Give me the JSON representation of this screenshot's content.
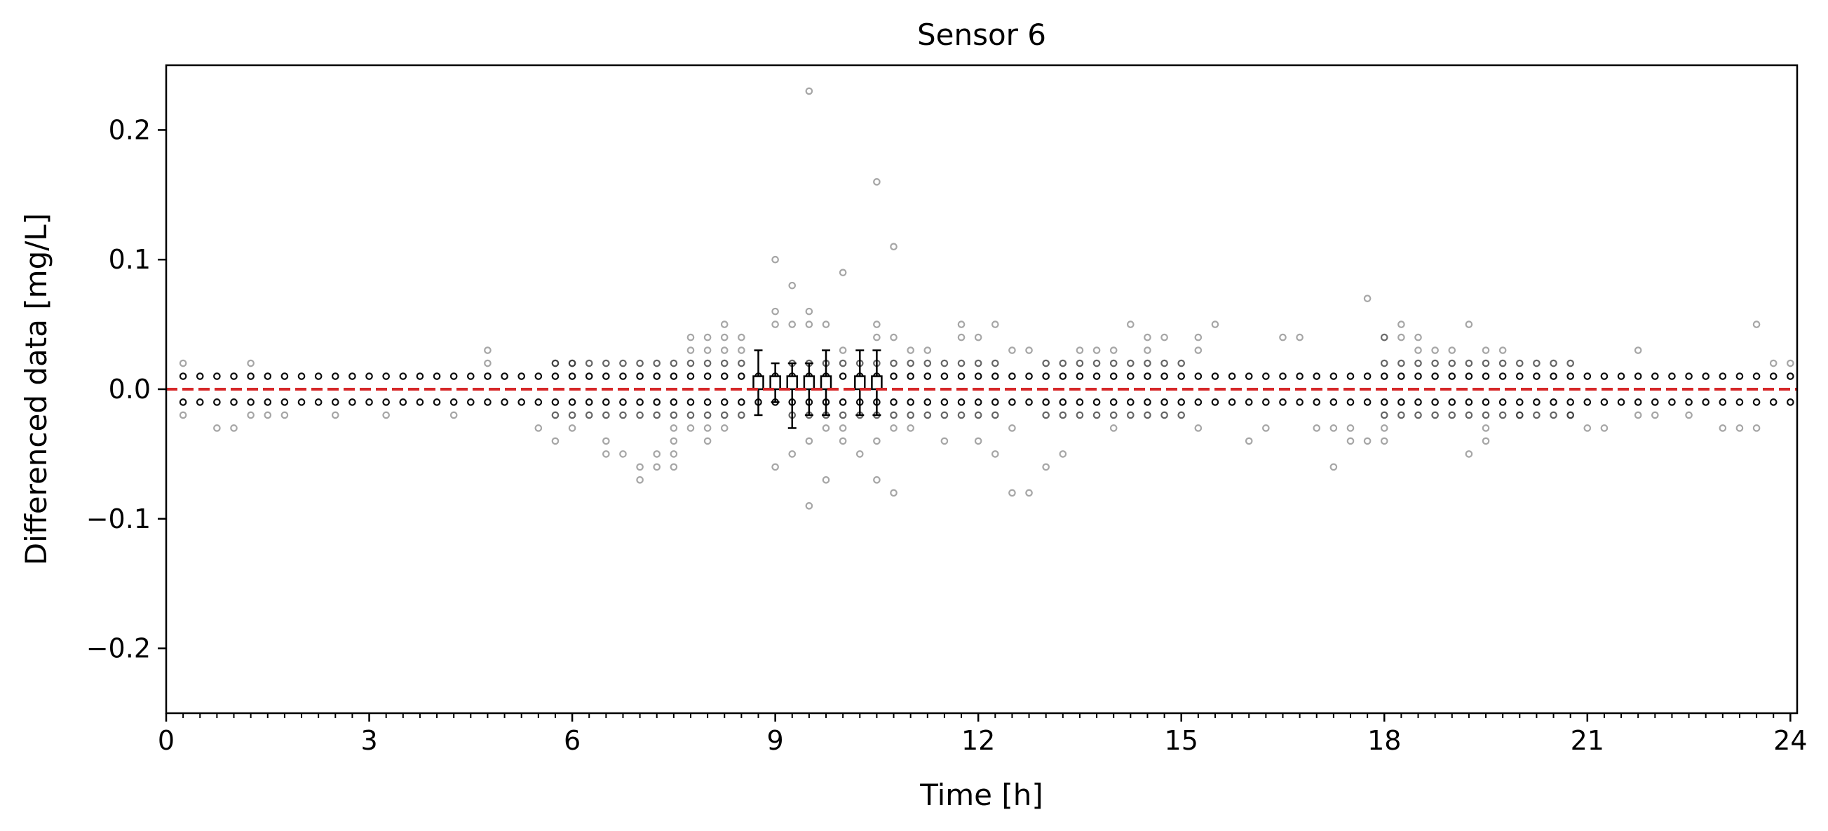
{
  "chart_data": {
    "type": "scatter",
    "title": "Sensor 6",
    "xlabel": "Time [h]",
    "ylabel": "Differenced data [mg/L]",
    "xlim": [
      0,
      24.1
    ],
    "ylim": [
      -0.25,
      0.25
    ],
    "x_ticks": [
      0,
      3,
      6,
      9,
      12,
      15,
      18,
      21,
      24
    ],
    "x_tick_labels": [
      "0",
      "3",
      "6",
      "9",
      "12",
      "15",
      "18",
      "21",
      "24"
    ],
    "x_minor_step": 0.25,
    "y_ticks": [
      -0.2,
      -0.1,
      0.0,
      0.1,
      0.2
    ],
    "y_tick_labels": [
      "−0.2",
      "−0.1",
      "0.0",
      "0.1",
      "0.2"
    ],
    "grid": false,
    "reference_line": {
      "y": 0.0,
      "style": "dashed",
      "color": "#d62728"
    },
    "point_color": "#000000",
    "sample_interval_h": 0.25,
    "num_slots": 96,
    "baseline_values": [
      -0.01,
      0.01
    ],
    "outer_values": [
      -0.02,
      0.02
    ],
    "outer_slot_ranges": [
      [
        23,
        34
      ],
      [
        37,
        49
      ],
      [
        52,
        60
      ],
      [
        72,
        83
      ]
    ],
    "extra_points": [
      {
        "x": 0.25,
        "y": 0.02
      },
      {
        "x": 0.25,
        "y": -0.02
      },
      {
        "x": 0.75,
        "y": -0.03
      },
      {
        "x": 1.0,
        "y": -0.03
      },
      {
        "x": 1.25,
        "y": 0.02
      },
      {
        "x": 1.25,
        "y": -0.02
      },
      {
        "x": 1.5,
        "y": -0.02
      },
      {
        "x": 1.75,
        "y": -0.02
      },
      {
        "x": 2.5,
        "y": -0.02
      },
      {
        "x": 3.25,
        "y": -0.02
      },
      {
        "x": 4.25,
        "y": -0.02
      },
      {
        "x": 4.75,
        "y": 0.03
      },
      {
        "x": 4.75,
        "y": 0.02
      },
      {
        "x": 5.5,
        "y": -0.03
      },
      {
        "x": 5.75,
        "y": -0.04
      },
      {
        "x": 6.0,
        "y": -0.03
      },
      {
        "x": 5.75,
        "y": 0.02
      },
      {
        "x": 6.0,
        "y": 0.02
      },
      {
        "x": 6.5,
        "y": -0.04
      },
      {
        "x": 6.5,
        "y": -0.05
      },
      {
        "x": 6.75,
        "y": -0.05
      },
      {
        "x": 7.0,
        "y": -0.06
      },
      {
        "x": 7.0,
        "y": -0.07
      },
      {
        "x": 7.25,
        "y": -0.06
      },
      {
        "x": 7.25,
        "y": -0.05
      },
      {
        "x": 7.5,
        "y": -0.06
      },
      {
        "x": 7.5,
        "y": -0.05
      },
      {
        "x": 7.5,
        "y": -0.04
      },
      {
        "x": 7.5,
        "y": -0.03
      },
      {
        "x": 7.75,
        "y": -0.03
      },
      {
        "x": 8.0,
        "y": -0.04
      },
      {
        "x": 8.0,
        "y": -0.03
      },
      {
        "x": 8.25,
        "y": -0.03
      },
      {
        "x": 7.75,
        "y": 0.03
      },
      {
        "x": 7.75,
        "y": 0.04
      },
      {
        "x": 8.0,
        "y": 0.04
      },
      {
        "x": 8.0,
        "y": 0.03
      },
      {
        "x": 8.25,
        "y": 0.03
      },
      {
        "x": 8.25,
        "y": 0.04
      },
      {
        "x": 8.25,
        "y": 0.05
      },
      {
        "x": 8.5,
        "y": 0.03
      },
      {
        "x": 8.5,
        "y": 0.04
      },
      {
        "x": 9.0,
        "y": 0.1
      },
      {
        "x": 9.0,
        "y": 0.06
      },
      {
        "x": 9.0,
        "y": 0.05
      },
      {
        "x": 9.0,
        "y": -0.06
      },
      {
        "x": 9.25,
        "y": 0.08
      },
      {
        "x": 9.25,
        "y": 0.05
      },
      {
        "x": 9.25,
        "y": -0.05
      },
      {
        "x": 9.5,
        "y": 0.23
      },
      {
        "x": 9.5,
        "y": 0.06
      },
      {
        "x": 9.5,
        "y": 0.05
      },
      {
        "x": 9.5,
        "y": -0.04
      },
      {
        "x": 9.5,
        "y": -0.09
      },
      {
        "x": 9.75,
        "y": 0.05
      },
      {
        "x": 9.75,
        "y": -0.03
      },
      {
        "x": 9.75,
        "y": -0.07
      },
      {
        "x": 10.0,
        "y": 0.09
      },
      {
        "x": 10.0,
        "y": 0.03
      },
      {
        "x": 10.0,
        "y": -0.03
      },
      {
        "x": 10.0,
        "y": -0.04
      },
      {
        "x": 10.25,
        "y": -0.05
      },
      {
        "x": 10.5,
        "y": 0.16
      },
      {
        "x": 10.5,
        "y": 0.05
      },
      {
        "x": 10.5,
        "y": 0.04
      },
      {
        "x": 10.5,
        "y": -0.04
      },
      {
        "x": 10.5,
        "y": -0.07
      },
      {
        "x": 10.75,
        "y": 0.11
      },
      {
        "x": 10.75,
        "y": 0.04
      },
      {
        "x": 10.75,
        "y": -0.08
      },
      {
        "x": 10.75,
        "y": -0.03
      },
      {
        "x": 11.0,
        "y": 0.03
      },
      {
        "x": 11.0,
        "y": -0.03
      },
      {
        "x": 11.25,
        "y": 0.03
      },
      {
        "x": 11.5,
        "y": -0.04
      },
      {
        "x": 11.75,
        "y": 0.04
      },
      {
        "x": 11.75,
        "y": 0.05
      },
      {
        "x": 12.0,
        "y": 0.04
      },
      {
        "x": 12.0,
        "y": -0.04
      },
      {
        "x": 12.25,
        "y": 0.05
      },
      {
        "x": 12.25,
        "y": -0.05
      },
      {
        "x": 12.5,
        "y": 0.03
      },
      {
        "x": 12.5,
        "y": -0.03
      },
      {
        "x": 12.5,
        "y": -0.08
      },
      {
        "x": 12.75,
        "y": -0.08
      },
      {
        "x": 12.75,
        "y": 0.03
      },
      {
        "x": 13.0,
        "y": -0.06
      },
      {
        "x": 13.25,
        "y": -0.05
      },
      {
        "x": 13.5,
        "y": 0.03
      },
      {
        "x": 13.75,
        "y": 0.03
      },
      {
        "x": 14.0,
        "y": 0.03
      },
      {
        "x": 14.25,
        "y": 0.05
      },
      {
        "x": 14.5,
        "y": 0.04
      },
      {
        "x": 14.5,
        "y": 0.03
      },
      {
        "x": 14.75,
        "y": 0.04
      },
      {
        "x": 14.0,
        "y": -0.03
      },
      {
        "x": 15.25,
        "y": 0.04
      },
      {
        "x": 15.25,
        "y": 0.03
      },
      {
        "x": 15.25,
        "y": -0.03
      },
      {
        "x": 15.5,
        "y": 0.05
      },
      {
        "x": 16.0,
        "y": -0.04
      },
      {
        "x": 16.25,
        "y": -0.03
      },
      {
        "x": 16.5,
        "y": 0.04
      },
      {
        "x": 16.75,
        "y": 0.04
      },
      {
        "x": 17.0,
        "y": -0.03
      },
      {
        "x": 17.25,
        "y": -0.03
      },
      {
        "x": 17.25,
        "y": -0.06
      },
      {
        "x": 17.5,
        "y": -0.03
      },
      {
        "x": 17.5,
        "y": -0.04
      },
      {
        "x": 17.75,
        "y": 0.07
      },
      {
        "x": 17.75,
        "y": -0.04
      },
      {
        "x": 18.0,
        "y": -0.04
      },
      {
        "x": 18.0,
        "y": -0.03
      },
      {
        "x": 18.0,
        "y": 0.04
      },
      {
        "x": 18.0,
        "y": 0.04
      },
      {
        "x": 18.25,
        "y": 0.05
      },
      {
        "x": 18.25,
        "y": 0.04
      },
      {
        "x": 18.5,
        "y": 0.04
      },
      {
        "x": 18.5,
        "y": 0.03
      },
      {
        "x": 18.75,
        "y": 0.03
      },
      {
        "x": 19.0,
        "y": 0.03
      },
      {
        "x": 19.25,
        "y": 0.05
      },
      {
        "x": 19.25,
        "y": -0.05
      },
      {
        "x": 19.5,
        "y": -0.03
      },
      {
        "x": 19.5,
        "y": -0.04
      },
      {
        "x": 19.5,
        "y": 0.03
      },
      {
        "x": 19.75,
        "y": 0.03
      },
      {
        "x": 20.0,
        "y": -0.02
      },
      {
        "x": 20.75,
        "y": -0.02
      },
      {
        "x": 21.0,
        "y": -0.03
      },
      {
        "x": 21.25,
        "y": -0.03
      },
      {
        "x": 21.75,
        "y": 0.03
      },
      {
        "x": 21.75,
        "y": -0.02
      },
      {
        "x": 22.0,
        "y": -0.02
      },
      {
        "x": 22.5,
        "y": -0.02
      },
      {
        "x": 23.0,
        "y": -0.03
      },
      {
        "x": 23.25,
        "y": -0.03
      },
      {
        "x": 23.5,
        "y": 0.05
      },
      {
        "x": 23.5,
        "y": -0.03
      },
      {
        "x": 23.75,
        "y": 0.02
      },
      {
        "x": 24.0,
        "y": 0.02
      }
    ],
    "boxes": [
      {
        "x": 8.75,
        "q1": 0.0,
        "q3": 0.01,
        "whisker_low": -0.02,
        "whisker_high": 0.03
      },
      {
        "x": 9.0,
        "q1": 0.0,
        "q3": 0.01,
        "whisker_low": -0.01,
        "whisker_high": 0.02
      },
      {
        "x": 9.25,
        "q1": 0.0,
        "q3": 0.01,
        "whisker_low": -0.03,
        "whisker_high": 0.02
      },
      {
        "x": 9.5,
        "q1": 0.0,
        "q3": 0.01,
        "whisker_low": -0.02,
        "whisker_high": 0.02
      },
      {
        "x": 9.75,
        "q1": 0.0,
        "q3": 0.01,
        "whisker_low": -0.02,
        "whisker_high": 0.03
      },
      {
        "x": 10.25,
        "q1": 0.0,
        "q3": 0.01,
        "whisker_low": -0.02,
        "whisker_high": 0.03
      },
      {
        "x": 10.5,
        "q1": 0.0,
        "q3": 0.01,
        "whisker_low": -0.02,
        "whisker_high": 0.03
      }
    ]
  }
}
